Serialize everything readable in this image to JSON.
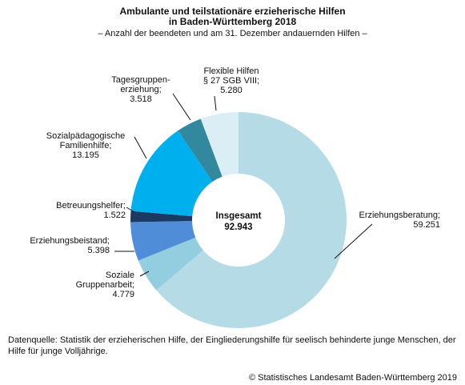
{
  "title_line1": "Ambulante und teilstationäre erzieherische Hilfen",
  "title_line2": "in Baden-Württemberg 2018",
  "subtitle": "– Anzahl der beendeten und am 31. Dezember andauernden Hilfen –",
  "center_label": "Insgesamt",
  "center_value": "92.943",
  "source_text": "Datenquelle: Statistik der erzieherischen Hilfe, der Eingliederungshilfe für seelisch behinderte junge Menschen, der Hilfe für junge Volljährige.",
  "copyright": "© Statistisches Landesamt Baden-Württemberg 2019",
  "chart_data": {
    "type": "pie",
    "variant": "donut",
    "title": "Ambulante und teilstationäre erzieherische Hilfen in Baden-Württemberg 2018",
    "subtitle": "– Anzahl der beendeten und am 31. Dezember andauernden Hilfen –",
    "total": 92943,
    "total_label": "92.943",
    "slices": [
      {
        "name": "Erziehungsberatung",
        "value": 59251,
        "value_label": "59.251",
        "color": "#b5dce6",
        "label_lines": [
          "Erziehungsberatung;",
          "59.251"
        ]
      },
      {
        "name": "Soziale Gruppenarbeit",
        "value": 4779,
        "value_label": "4.779",
        "color": "#93cde0",
        "label_lines": [
          "Soziale",
          "Gruppenarbeit;",
          "4.779"
        ]
      },
      {
        "name": "Erziehungsbeistand",
        "value": 5398,
        "value_label": "5.398",
        "color": "#4f8dd9",
        "label_lines": [
          "Erziehungsbeistand;",
          "5.398"
        ]
      },
      {
        "name": "Betreuungshelfer",
        "value": 1522,
        "value_label": "1.522",
        "color": "#1b3a63",
        "label_lines": [
          "Betreuungshelfer;",
          "1.522"
        ]
      },
      {
        "name": "Sozialpädagogische Familienhilfe",
        "value": 13195,
        "value_label": "13.195",
        "color": "#00b0ee",
        "label_lines": [
          "Sozialpädagogische",
          "Familienhilfe;",
          "13.195"
        ]
      },
      {
        "name": "Tagesgruppenerziehung",
        "value": 3518,
        "value_label": "3.518",
        "color": "#32899e",
        "label_lines": [
          "Tagesgruppen-",
          "erziehung;",
          "3.518"
        ]
      },
      {
        "name": "Flexible Hilfen § 27 SGB VIII",
        "value": 5280,
        "value_label": "5.280",
        "color": "#dceef5",
        "label_lines": [
          "Flexible Hilfen",
          "§ 27 SGB VIII;",
          "5.280"
        ]
      }
    ]
  }
}
